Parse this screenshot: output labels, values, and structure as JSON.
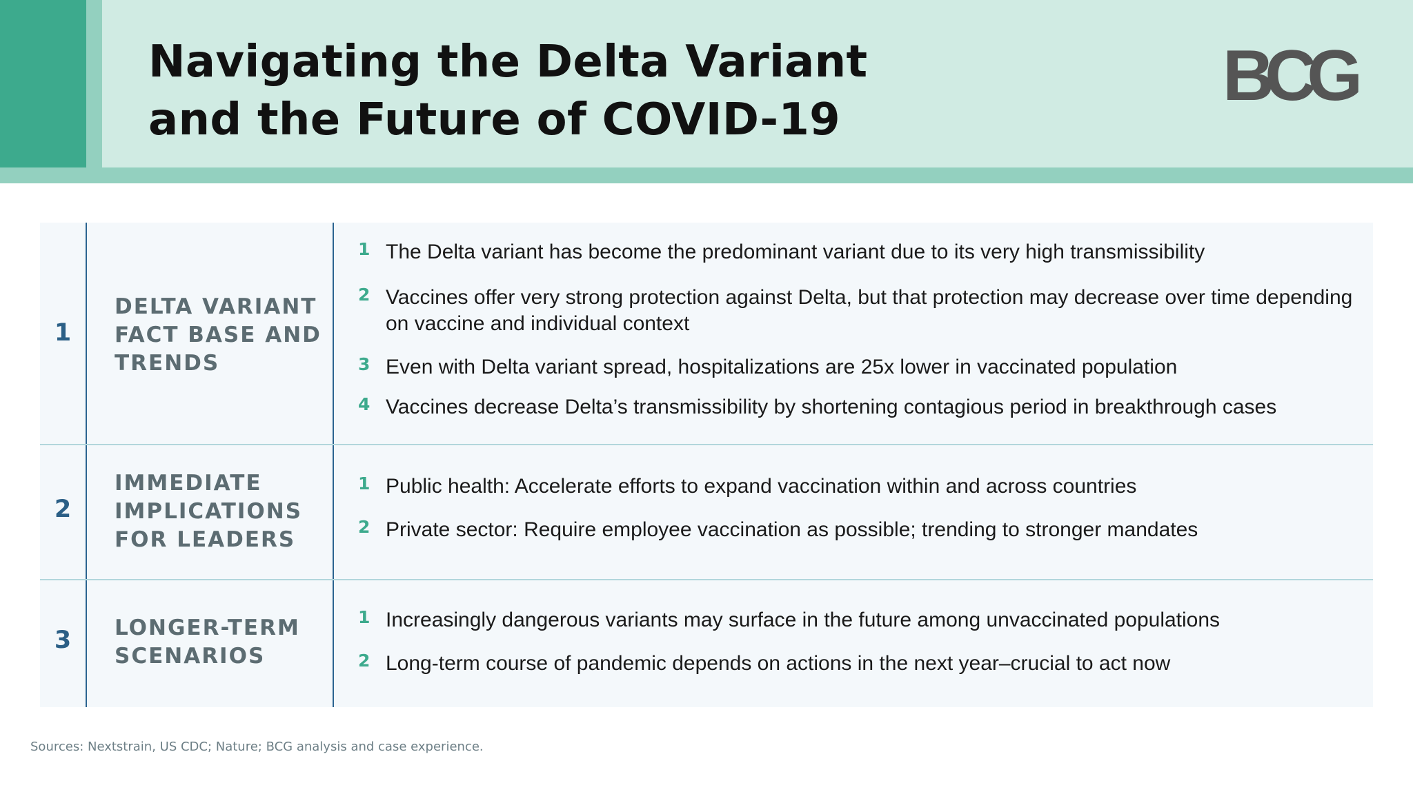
{
  "header": {
    "title_lines": [
      "Navigating the Delta Variant",
      "and the Future of COVID-19"
    ],
    "logo_text": "BCG"
  },
  "sections": [
    {
      "number": "1",
      "title_lines": [
        "DELTA VARIANT",
        "FACT BASE AND",
        "TRENDS"
      ],
      "items": [
        {
          "number": "1",
          "text": "The Delta variant has become the predominant variant due to its very high transmissibility"
        },
        {
          "number": "2",
          "text": "Vaccines offer very strong protection against Delta, but that protection may decrease over time depending on vaccine and individual context"
        },
        {
          "number": "3",
          "text": "Even with Delta variant spread, hospitalizations are 25x lower in vaccinated population"
        },
        {
          "number": "4",
          "text": "Vaccines decrease Delta’s transmissibility by shortening contagious period in breakthrough cases"
        }
      ]
    },
    {
      "number": "2",
      "title_lines": [
        "IMMEDIATE",
        "IMPLICATIONS",
        "FOR LEADERS"
      ],
      "items": [
        {
          "number": "1",
          "text": "Public health: Accelerate efforts to expand vaccination within and across countries"
        },
        {
          "number": "2",
          "text": "Private sector: Require employee vaccination as possible; trending to stronger mandates"
        }
      ]
    },
    {
      "number": "3",
      "title_lines": [
        "LONGER-TERM",
        "SCENARIOS"
      ],
      "items": [
        {
          "number": "1",
          "text": "Increasingly dangerous variants may surface in the future among unvaccinated populations"
        },
        {
          "number": "2",
          "text": "Long-term course of pandemic depends on actions in the next year–crucial to act now"
        }
      ]
    }
  ],
  "footer": {
    "sources": "Sources: Nextstrain, US CDC; Nature; BCG analysis and case experience."
  },
  "colors": {
    "accent_green": "#3daa8d",
    "header_light": "#d0ebe3",
    "header_band": "#93d0bf",
    "navy": "#2b5f86",
    "table_bg": "#f4f8fb"
  }
}
